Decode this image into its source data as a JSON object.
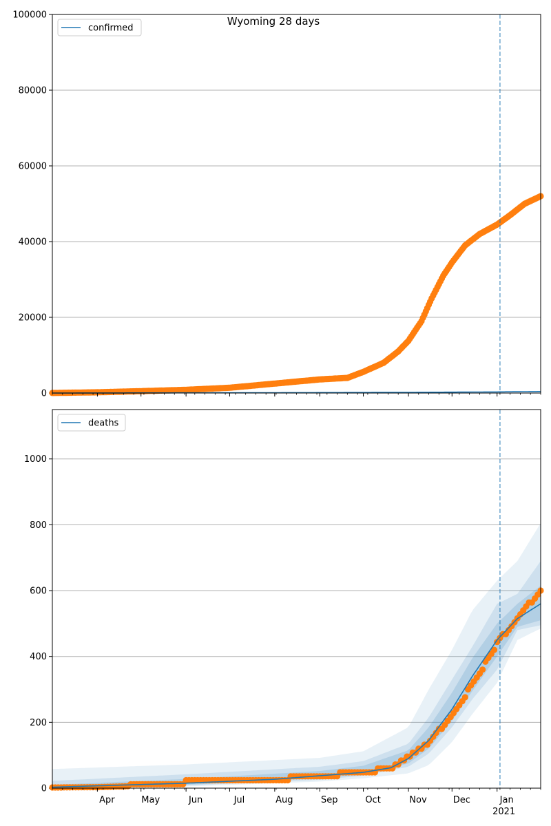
{
  "title": "Wyoming 28 days",
  "colors": {
    "model": "#1f77b4",
    "observed": "#ff7f0e",
    "band": "#1f77b4",
    "grid": "#b0b0b0",
    "vline": "#1f77b4"
  },
  "x_axis": {
    "start": "2020-03-01",
    "end": "2021-01-31",
    "month_ticks": [
      {
        "date": "2020-04-01",
        "label": "Apr"
      },
      {
        "date": "2020-05-01",
        "label": "May"
      },
      {
        "date": "2020-06-01",
        "label": "Jun"
      },
      {
        "date": "2020-07-01",
        "label": "Jul"
      },
      {
        "date": "2020-08-01",
        "label": "Aug"
      },
      {
        "date": "2020-09-01",
        "label": "Sep"
      },
      {
        "date": "2020-10-01",
        "label": "Oct"
      },
      {
        "date": "2020-11-01",
        "label": "Nov"
      },
      {
        "date": "2020-12-01",
        "label": "Dec"
      },
      {
        "date": "2021-01-01",
        "label": "Jan"
      }
    ],
    "year_label": {
      "date": "2021-01-01",
      "label": "2021"
    },
    "forecast_line": "2021-01-03"
  },
  "chart_data": [
    {
      "type": "line",
      "legend": "confirmed",
      "legend_position": "top-left",
      "grid": "horizontal",
      "ylim": [
        0,
        100000
      ],
      "yticks": [
        {
          "value": 0,
          "label": "0"
        },
        {
          "value": 20000,
          "label": "20000"
        },
        {
          "value": 40000,
          "label": "40000"
        },
        {
          "value": 60000,
          "label": "60000"
        },
        {
          "value": 80000,
          "label": "80000"
        },
        {
          "value": 100000,
          "label": "100000"
        }
      ],
      "series": [
        {
          "role": "model",
          "name": "confirmed",
          "points": [
            [
              "2020-03-01",
              0
            ],
            [
              "2020-06-01",
              50
            ],
            [
              "2020-09-01",
              120
            ],
            [
              "2020-11-01",
              180
            ],
            [
              "2021-01-01",
              300
            ],
            [
              "2021-01-31",
              400
            ]
          ]
        },
        {
          "role": "observed",
          "points": [
            [
              "2020-03-01",
              20
            ],
            [
              "2020-04-01",
              200
            ],
            [
              "2020-05-01",
              500
            ],
            [
              "2020-06-01",
              850
            ],
            [
              "2020-07-01",
              1400
            ],
            [
              "2020-08-01",
              2500
            ],
            [
              "2020-09-01",
              3600
            ],
            [
              "2020-09-20",
              4000
            ],
            [
              "2020-10-01",
              5600
            ],
            [
              "2020-10-15",
              8000
            ],
            [
              "2020-10-25",
              11000
            ],
            [
              "2020-11-01",
              13800
            ],
            [
              "2020-11-10",
              19000
            ],
            [
              "2020-11-17",
              25000
            ],
            [
              "2020-11-25",
              31000
            ],
            [
              "2020-12-01",
              34500
            ],
            [
              "2020-12-10",
              39000
            ],
            [
              "2020-12-20",
              42000
            ],
            [
              "2021-01-01",
              44500
            ],
            [
              "2021-01-10",
              47000
            ],
            [
              "2021-01-20",
              50000
            ],
            [
              "2021-01-31",
              52000
            ]
          ]
        }
      ]
    },
    {
      "type": "line",
      "legend": "deaths",
      "legend_position": "top-left",
      "grid": "horizontal",
      "ylim": [
        0,
        1150
      ],
      "yticks": [
        {
          "value": 0,
          "label": "0"
        },
        {
          "value": 200,
          "label": "200"
        },
        {
          "value": 400,
          "label": "400"
        },
        {
          "value": 600,
          "label": "600"
        },
        {
          "value": 800,
          "label": "800"
        },
        {
          "value": 1000,
          "label": "1000"
        }
      ],
      "series": [
        {
          "role": "model",
          "name": "deaths",
          "points": [
            [
              "2020-03-01",
              3
            ],
            [
              "2020-06-01",
              15
            ],
            [
              "2020-08-01",
              27
            ],
            [
              "2020-10-01",
              48
            ],
            [
              "2020-10-20",
              62
            ],
            [
              "2020-11-01",
              90
            ],
            [
              "2020-11-15",
              145
            ],
            [
              "2020-12-01",
              240
            ],
            [
              "2020-12-15",
              340
            ],
            [
              "2021-01-01",
              450
            ],
            [
              "2021-01-15",
              515
            ],
            [
              "2021-01-31",
              560
            ]
          ]
        },
        {
          "role": "observed",
          "points": [
            [
              "2020-03-01",
              2
            ],
            [
              "2020-04-01",
              3
            ],
            [
              "2020-05-01",
              7
            ],
            [
              "2020-06-01",
              18
            ],
            [
              "2020-07-01",
              21
            ],
            [
              "2020-08-01",
              27
            ],
            [
              "2020-09-01",
              37
            ],
            [
              "2020-10-01",
              49
            ],
            [
              "2020-10-20",
              59
            ],
            [
              "2020-11-01",
              93
            ],
            [
              "2020-11-15",
              140
            ],
            [
              "2020-12-01",
              218
            ],
            [
              "2020-12-10",
              280
            ],
            [
              "2020-12-20",
              350
            ],
            [
              "2021-01-01",
              440
            ],
            [
              "2021-01-10",
              490
            ],
            [
              "2021-01-20",
              545
            ],
            [
              "2021-01-31",
              595
            ]
          ]
        }
      ],
      "bands": [
        {
          "level": "outer",
          "opacity": 0.1,
          "points": [
            [
              "2020-03-01",
              0,
              58
            ],
            [
              "2020-06-01",
              5,
              72
            ],
            [
              "2020-09-01",
              20,
              92
            ],
            [
              "2020-10-01",
              30,
              112
            ],
            [
              "2020-11-01",
              45,
              185
            ],
            [
              "2020-11-15",
              70,
              300
            ],
            [
              "2020-12-01",
              140,
              420
            ],
            [
              "2020-12-15",
              225,
              540
            ],
            [
              "2021-01-01",
              320,
              630
            ],
            [
              "2021-01-15",
              450,
              690
            ],
            [
              "2021-01-31",
              485,
              805
            ]
          ]
        },
        {
          "level": "middle",
          "opacity": 0.13,
          "points": [
            [
              "2020-03-01",
              0,
              22
            ],
            [
              "2020-06-01",
              8,
              42
            ],
            [
              "2020-09-01",
              25,
              65
            ],
            [
              "2020-10-01",
              38,
              82
            ],
            [
              "2020-11-01",
              65,
              135
            ],
            [
              "2020-11-15",
              105,
              215
            ],
            [
              "2020-12-01",
              185,
              330
            ],
            [
              "2020-12-15",
              270,
              430
            ],
            [
              "2021-01-01",
              360,
              560
            ],
            [
              "2021-01-15",
              480,
              590
            ],
            [
              "2021-01-31",
              495,
              690
            ]
          ]
        },
        {
          "level": "inner",
          "opacity": 0.16,
          "points": [
            [
              "2020-03-01",
              0,
              10
            ],
            [
              "2020-06-01",
              10,
              28
            ],
            [
              "2020-09-01",
              30,
              52
            ],
            [
              "2020-10-01",
              42,
              68
            ],
            [
              "2020-11-01",
              75,
              115
            ],
            [
              "2020-11-15",
              120,
              185
            ],
            [
              "2020-12-01",
              205,
              290
            ],
            [
              "2020-12-15",
              295,
              395
            ],
            [
              "2021-01-01",
              400,
              500
            ],
            [
              "2021-01-15",
              490,
              560
            ],
            [
              "2021-01-31",
              510,
              615
            ]
          ]
        }
      ]
    }
  ]
}
